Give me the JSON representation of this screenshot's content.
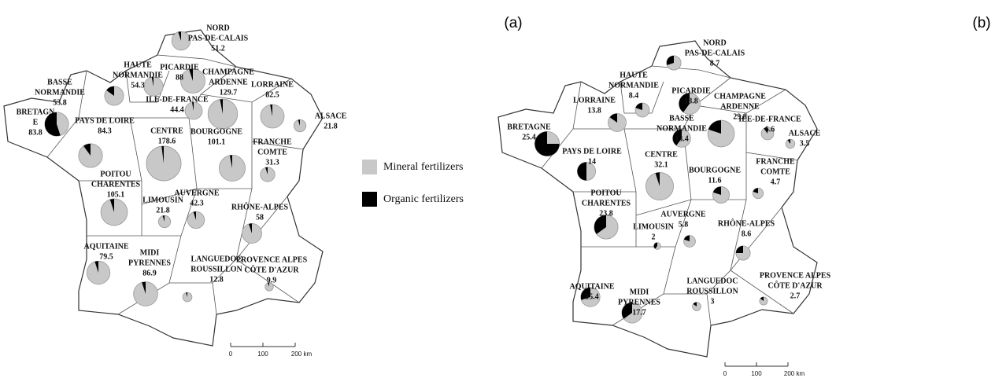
{
  "panels": [
    {
      "label": "(a)",
      "regions": [
        {
          "name": [
            "NORD",
            "PAS-DE-CALAIS"
          ],
          "value": 51.2,
          "organic": 5
        },
        {
          "name": [
            "PICARDIE"
          ],
          "value": 88,
          "organic": 5
        },
        {
          "name": [
            "HAUTE",
            "NORMANDIE"
          ],
          "value": 54.3,
          "organic": 3
        },
        {
          "name": [
            "CHAMPAGNE",
            "ARDENNE"
          ],
          "value": 129.7,
          "organic": 3
        },
        {
          "name": [
            "LORRAINE"
          ],
          "value": 82.5,
          "organic": 3
        },
        {
          "name": [
            "BASSE",
            "NORMANDIE"
          ],
          "value": 53.8,
          "organic": 15
        },
        {
          "name": [
            "ILE-DE-FRANCE"
          ],
          "value": 44.4,
          "organic": 3
        },
        {
          "name": [
            "ALSACE"
          ],
          "value": 21.8,
          "organic": 5
        },
        {
          "name": [
            "BRETAGN",
            "E"
          ],
          "value": 83.8,
          "organic": 55
        },
        {
          "name": [
            "PAYS DE LOIRE"
          ],
          "value": 84.3,
          "organic": 10
        },
        {
          "name": [
            "CENTRE"
          ],
          "value": 178.6,
          "organic": 2
        },
        {
          "name": [
            "BOURGOGNE"
          ],
          "value": 101.1,
          "organic": 3
        },
        {
          "name": [
            "FRANCHE",
            "COMTE"
          ],
          "value": 31.3,
          "organic": 5
        },
        {
          "name": [
            "POITOU",
            "CHARENTES"
          ],
          "value": 105.1,
          "organic": 5
        },
        {
          "name": [
            "LIMOUSIN"
          ],
          "value": 21.8,
          "organic": 5
        },
        {
          "name": [
            "AUVERGNE"
          ],
          "value": 42.3,
          "organic": 5
        },
        {
          "name": [
            "RHÔNE-ALPES"
          ],
          "value": 58,
          "organic": 5
        },
        {
          "name": [
            "AQUITAINE"
          ],
          "value": 79.5,
          "organic": 5
        },
        {
          "name": [
            "MIDI",
            "PYRENNES"
          ],
          "value": 86.9,
          "organic": 5
        },
        {
          "name": [
            "LANGUEDOC",
            "ROUSSILLON"
          ],
          "value": 12.8,
          "organic": 5
        },
        {
          "name": [
            "PROVENCE ALPES",
            "CÔTE D'AZUR"
          ],
          "value": 9.9,
          "organic": 5
        }
      ],
      "scale": [
        0,
        100,
        {
          "value": 200,
          "label": "200 km"
        }
      ]
    },
    {
      "label": "(b)",
      "regions": [
        {
          "name": [
            "NORD",
            "PAS-DE-CALAIS"
          ],
          "value": 8.7,
          "organic": 30
        },
        {
          "name": [
            "PICARDIE"
          ],
          "value": 18.8,
          "organic": 40
        },
        {
          "name": [
            "HAUTE",
            "NORMANDIE"
          ],
          "value": 8.4,
          "organic": 20
        },
        {
          "name": [
            "CHAMPAGNE",
            "ARDENNE"
          ],
          "value": 29.8,
          "organic": 20
        },
        {
          "name": [
            "LORRAINE"
          ],
          "value": 13.8,
          "organic": 15
        },
        {
          "name": [
            "BASSE",
            "NORMANDIE"
          ],
          "value": 13.4,
          "organic": 40
        },
        {
          "name": [
            "ILE-DE-FRANCE"
          ],
          "value": 6.6,
          "organic": 10
        },
        {
          "name": [
            "ALSACE"
          ],
          "value": 3.5,
          "organic": 10
        },
        {
          "name": [
            "BRETAGNE"
          ],
          "value": 25.4,
          "organic": 75
        },
        {
          "name": [
            "PAYS DE LOIRE"
          ],
          "value": 14,
          "organic": 50
        },
        {
          "name": [
            "CENTRE"
          ],
          "value": 32.1,
          "organic": 5
        },
        {
          "name": [
            "BOURGOGNE"
          ],
          "value": 11.6,
          "organic": 20
        },
        {
          "name": [
            "FRANCHE",
            "COMTE"
          ],
          "value": 4.7,
          "organic": 20
        },
        {
          "name": [
            "POITOU",
            "CHARENTES"
          ],
          "value": 23.8,
          "organic": 35
        },
        {
          "name": [
            "LIMOUSIN"
          ],
          "value": 2,
          "organic": 40
        },
        {
          "name": [
            "AUVERGNE"
          ],
          "value": 5.8,
          "organic": 20
        },
        {
          "name": [
            "RHÔNE-ALPES"
          ],
          "value": 8.6,
          "organic": 25
        },
        {
          "name": [
            "AQUITAINE"
          ],
          "value": 15.4,
          "organic": 30
        },
        {
          "name": [
            "MIDI",
            "PYRENNES"
          ],
          "value": 17.7,
          "organic": 35
        },
        {
          "name": [
            "LANGUEDOC",
            "ROUSSILLON"
          ],
          "value": 3,
          "organic": 15
        },
        {
          "name": [
            "PROVENCE ALPES",
            "CÔTE D'AZUR"
          ],
          "value": 2.7,
          "organic": 15
        }
      ],
      "scale": [
        0,
        100,
        {
          "value": 200,
          "label": "200 km"
        }
      ]
    }
  ],
  "legend": [
    {
      "label": "Mineral fertilizers",
      "color": "#c8c8c8"
    },
    {
      "label": "Organic fertilizers",
      "color": "#000000"
    }
  ]
}
